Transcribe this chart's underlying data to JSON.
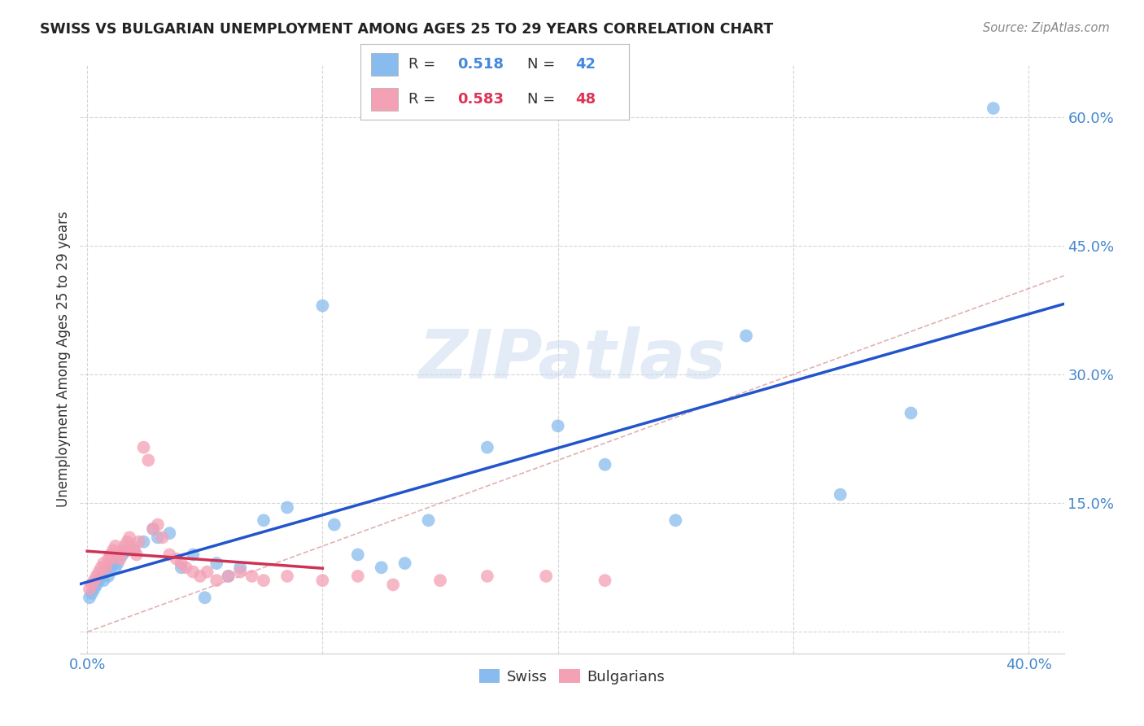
{
  "title": "SWISS VS BULGARIAN UNEMPLOYMENT AMONG AGES 25 TO 29 YEARS CORRELATION CHART",
  "source": "Source: ZipAtlas.com",
  "ylabel": "Unemployment Among Ages 25 to 29 years",
  "xlabel_swiss": "Swiss",
  "xlabel_bulgarian": "Bulgarians",
  "legend_swiss_R": "0.518",
  "legend_swiss_N": "42",
  "legend_bulgarian_R": "0.583",
  "legend_bulgarian_N": "48",
  "xlim": [
    -0.003,
    0.415
  ],
  "ylim": [
    -0.025,
    0.66
  ],
  "background_color": "#ffffff",
  "grid_color": "#cccccc",
  "swiss_color": "#88bbee",
  "bulgarian_color": "#f4a0b5",
  "swiss_line_color": "#2255cc",
  "bulgarian_line_color": "#cc3355",
  "diagonal_color": "#ddaaaa",
  "watermark_color": "#c8d8f0",
  "swiss_x": [
    0.001,
    0.002,
    0.003,
    0.004,
    0.005,
    0.006,
    0.007,
    0.008,
    0.009,
    0.01,
    0.011,
    0.012,
    0.013,
    0.015,
    0.017,
    0.02,
    0.024,
    0.028,
    0.03,
    0.035,
    0.04,
    0.045,
    0.05,
    0.055,
    0.06,
    0.065,
    0.075,
    0.085,
    0.1,
    0.105,
    0.115,
    0.125,
    0.135,
    0.145,
    0.17,
    0.2,
    0.22,
    0.25,
    0.28,
    0.32,
    0.35,
    0.385
  ],
  "swiss_y": [
    0.04,
    0.045,
    0.05,
    0.055,
    0.06,
    0.065,
    0.06,
    0.07,
    0.065,
    0.075,
    0.08,
    0.075,
    0.08,
    0.09,
    0.095,
    0.095,
    0.105,
    0.12,
    0.11,
    0.115,
    0.075,
    0.09,
    0.04,
    0.08,
    0.065,
    0.075,
    0.13,
    0.145,
    0.38,
    0.125,
    0.09,
    0.075,
    0.08,
    0.13,
    0.215,
    0.24,
    0.195,
    0.13,
    0.345,
    0.16,
    0.255,
    0.61
  ],
  "bulgarian_x": [
    0.001,
    0.002,
    0.003,
    0.004,
    0.005,
    0.006,
    0.007,
    0.008,
    0.009,
    0.01,
    0.01,
    0.011,
    0.012,
    0.013,
    0.014,
    0.015,
    0.016,
    0.017,
    0.018,
    0.019,
    0.02,
    0.021,
    0.022,
    0.024,
    0.026,
    0.028,
    0.03,
    0.032,
    0.035,
    0.038,
    0.04,
    0.042,
    0.045,
    0.048,
    0.051,
    0.055,
    0.06,
    0.065,
    0.07,
    0.075,
    0.085,
    0.1,
    0.115,
    0.13,
    0.15,
    0.17,
    0.195,
    0.22
  ],
  "bulgarian_y": [
    0.05,
    0.055,
    0.06,
    0.065,
    0.07,
    0.075,
    0.08,
    0.075,
    0.085,
    0.09,
    0.085,
    0.095,
    0.1,
    0.09,
    0.085,
    0.095,
    0.1,
    0.105,
    0.11,
    0.1,
    0.095,
    0.09,
    0.105,
    0.215,
    0.2,
    0.12,
    0.125,
    0.11,
    0.09,
    0.085,
    0.08,
    0.075,
    0.07,
    0.065,
    0.07,
    0.06,
    0.065,
    0.07,
    0.065,
    0.06,
    0.065,
    0.06,
    0.065,
    0.055,
    0.06,
    0.065,
    0.065,
    0.06
  ]
}
